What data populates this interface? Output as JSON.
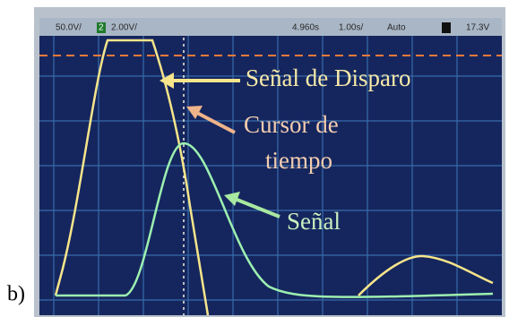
{
  "status_bar": {
    "ch1_scale": "50.0V/",
    "ch2_number": "2",
    "ch2_scale": "2.00V/",
    "time_position": "4.960s",
    "time_scale": "1.00s/",
    "trigger_mode": "Auto",
    "trigger_level": "17.3V"
  },
  "annotations": {
    "trigger_signal": "Señal de Disparo",
    "time_cursor_line1": "Cursor de",
    "time_cursor_line2": "tiempo",
    "signal": "Señal"
  },
  "panel_label": "b)"
}
